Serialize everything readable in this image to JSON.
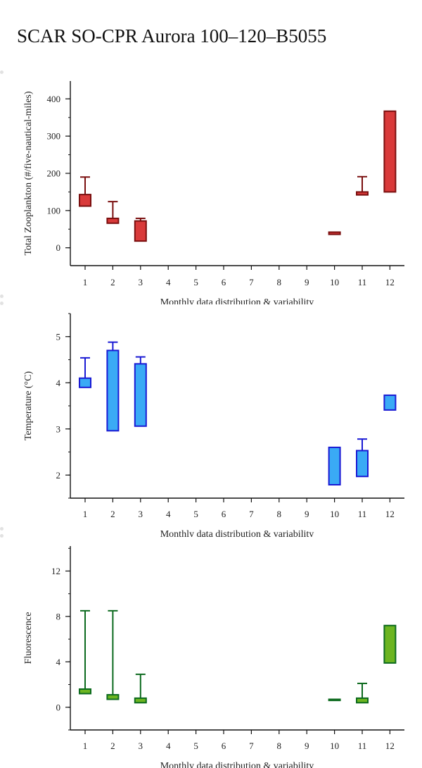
{
  "title": "SCAR SO-CPR Aurora 100–120–B5055",
  "xlabel": "Monthly data distribution & variability",
  "chart_data": [
    {
      "type": "box",
      "ylabel": "Total Zooplankton (#/five-nautical-miles)",
      "color": "#d93a3a",
      "edge": "#7a0f0f",
      "ylim": [
        -48,
        448
      ],
      "yticks": [
        0,
        100,
        200,
        300,
        400
      ],
      "yminor": 50,
      "categories": [
        "1",
        "2",
        "3",
        "4",
        "5",
        "6",
        "7",
        "8",
        "9",
        "10",
        "11",
        "12"
      ],
      "boxes": [
        {
          "month": "1",
          "low": 112,
          "high": 143,
          "whisker": 190
        },
        {
          "month": "2",
          "low": 66,
          "high": 79,
          "whisker": 124
        },
        {
          "month": "3",
          "low": 18,
          "high": 72,
          "whisker": 79
        },
        {
          "month": "10",
          "low": 36,
          "high": 42,
          "whisker": null
        },
        {
          "month": "11",
          "low": 142,
          "high": 150,
          "whisker": 191
        },
        {
          "month": "12",
          "low": 150,
          "high": 367,
          "whisker": null
        }
      ]
    },
    {
      "type": "box",
      "ylabel": "Temperature (°C)",
      "color": "#3aaaf5",
      "edge": "#1a1ad4",
      "ylim": [
        1.5,
        5.5
      ],
      "yticks": [
        2,
        3,
        4,
        5
      ],
      "yminor": 0.5,
      "categories": [
        "1",
        "2",
        "3",
        "4",
        "5",
        "6",
        "7",
        "8",
        "9",
        "10",
        "11",
        "12"
      ],
      "boxes": [
        {
          "month": "1",
          "low": 3.9,
          "high": 4.1,
          "whisker": 4.54
        },
        {
          "month": "2",
          "low": 2.96,
          "high": 4.7,
          "whisker": 4.88
        },
        {
          "month": "3",
          "low": 3.06,
          "high": 4.41,
          "whisker": 4.56
        },
        {
          "month": "10",
          "low": 1.79,
          "high": 2.6,
          "whisker": null
        },
        {
          "month": "11",
          "low": 1.97,
          "high": 2.53,
          "whisker": 2.78
        },
        {
          "month": "12",
          "low": 3.41,
          "high": 3.73,
          "whisker": null
        }
      ]
    },
    {
      "type": "box",
      "ylabel": "Fluorescence",
      "color": "#6cb521",
      "edge": "#0c6a1e",
      "ylim": [
        -2,
        14.2
      ],
      "yticks": [
        0,
        4,
        8,
        12
      ],
      "yminor": 2,
      "categories": [
        "1",
        "2",
        "3",
        "4",
        "5",
        "6",
        "7",
        "8",
        "9",
        "10",
        "11",
        "12"
      ],
      "boxes": [
        {
          "month": "1",
          "low": 1.2,
          "high": 1.6,
          "whisker": 8.5
        },
        {
          "month": "2",
          "low": 0.7,
          "high": 1.1,
          "whisker": 8.5
        },
        {
          "month": "3",
          "low": 0.4,
          "high": 0.8,
          "whisker": 2.9
        },
        {
          "month": "10",
          "low": 0.6,
          "high": 0.7,
          "whisker": null
        },
        {
          "month": "11",
          "low": 0.4,
          "high": 0.8,
          "whisker": 2.1
        },
        {
          "month": "12",
          "low": 3.9,
          "high": 7.2,
          "whisker": null
        }
      ]
    }
  ]
}
